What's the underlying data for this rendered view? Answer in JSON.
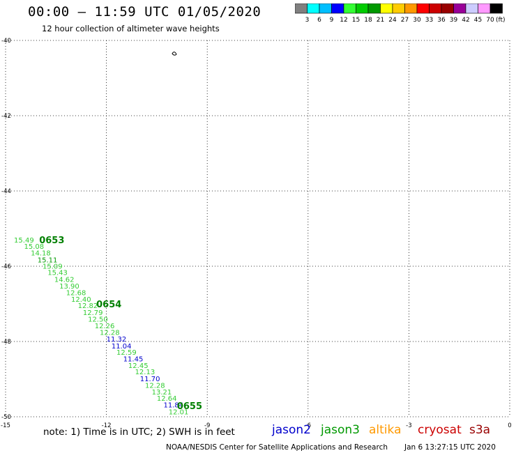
{
  "header": {
    "title": "00:00 – 11:59 UTC 01/05/2020",
    "subtitle": "12 hour collection of altimeter wave heights"
  },
  "colorbar": {
    "colors": [
      "#808080",
      "#00ffff",
      "#00bfff",
      "#0000ff",
      "#33ff33",
      "#00cc00",
      "#009900",
      "#ffff00",
      "#ffcc00",
      "#ff9900",
      "#ff0000",
      "#cc0000",
      "#990000",
      "#990099",
      "#ccccff",
      "#ff99ff",
      "#000000"
    ],
    "labels": [
      "3",
      "6",
      "9",
      "12",
      "15",
      "18",
      "21",
      "24",
      "27",
      "30",
      "33",
      "36",
      "39",
      "42",
      "45",
      "70"
    ],
    "unit": "(ft)"
  },
  "axes": {
    "lon_ticks": [
      "-15",
      "-12",
      "-9",
      "-6",
      "-3",
      "0"
    ],
    "lat_ticks": [
      "-40",
      "-42",
      "-44",
      "-46",
      "-48",
      "-50"
    ]
  },
  "map_data": {
    "lon_range": [
      -15,
      0
    ],
    "lat_range": [
      -50,
      -40
    ],
    "grid": "dotted",
    "island": {
      "lon": -10.0,
      "lat": -40.35
    },
    "time_labels": [
      {
        "text": "0653",
        "lon": -14.0,
        "lat": -45.3,
        "color": "#007f00"
      },
      {
        "text": "0654",
        "lon": -12.3,
        "lat": -47.0,
        "color": "#007f00"
      },
      {
        "text": "0655",
        "lon": -9.9,
        "lat": -49.7,
        "color": "#007f00"
      }
    ],
    "observations": [
      {
        "text": "15.49",
        "lon": -14.75,
        "lat": -45.3,
        "color": "#33cc33"
      },
      {
        "text": "15.08",
        "lon": -14.45,
        "lat": -45.46,
        "color": "#33cc33"
      },
      {
        "text": "14.18",
        "lon": -14.25,
        "lat": -45.64,
        "color": "#33cc33"
      },
      {
        "text": "15.11",
        "lon": -14.05,
        "lat": -45.82,
        "color": "#009900"
      },
      {
        "text": "15.09",
        "lon": -13.9,
        "lat": -45.99,
        "color": "#33cc33"
      },
      {
        "text": "15.43",
        "lon": -13.75,
        "lat": -46.16,
        "color": "#33cc33"
      },
      {
        "text": "14.62",
        "lon": -13.55,
        "lat": -46.34,
        "color": "#33cc33"
      },
      {
        "text": "13.90",
        "lon": -13.4,
        "lat": -46.52,
        "color": "#33cc33"
      },
      {
        "text": "12.68",
        "lon": -13.2,
        "lat": -46.69,
        "color": "#33cc33"
      },
      {
        "text": "12.40",
        "lon": -13.05,
        "lat": -46.87,
        "color": "#33cc33"
      },
      {
        "text": "12.82",
        "lon": -12.85,
        "lat": -47.04,
        "color": "#33cc33"
      },
      {
        "text": "12.79",
        "lon": -12.7,
        "lat": -47.22,
        "color": "#33cc33"
      },
      {
        "text": "12.50",
        "lon": -12.55,
        "lat": -47.4,
        "color": "#33cc33"
      },
      {
        "text": "12.26",
        "lon": -12.35,
        "lat": -47.57,
        "color": "#33cc33"
      },
      {
        "text": "12.28",
        "lon": -12.2,
        "lat": -47.75,
        "color": "#33cc33"
      },
      {
        "text": "11.32",
        "lon": -12.0,
        "lat": -47.93,
        "color": "#0000cc"
      },
      {
        "text": "11.04",
        "lon": -11.85,
        "lat": -48.11,
        "color": "#0000cc"
      },
      {
        "text": "12.59",
        "lon": -11.7,
        "lat": -48.28,
        "color": "#33cc33"
      },
      {
        "text": "11.45",
        "lon": -11.5,
        "lat": -48.45,
        "color": "#0000cc"
      },
      {
        "text": "12.45",
        "lon": -11.35,
        "lat": -48.63,
        "color": "#33cc33"
      },
      {
        "text": "12.13",
        "lon": -11.15,
        "lat": -48.8,
        "color": "#33cc33"
      },
      {
        "text": "11.70",
        "lon": -11.0,
        "lat": -48.98,
        "color": "#0000cc"
      },
      {
        "text": "12.28",
        "lon": -10.85,
        "lat": -49.16,
        "color": "#33cc33"
      },
      {
        "text": "13.21",
        "lon": -10.65,
        "lat": -49.33,
        "color": "#33cc33"
      },
      {
        "text": "12.64",
        "lon": -10.5,
        "lat": -49.5,
        "color": "#33cc33"
      },
      {
        "text": "11.84",
        "lon": -10.3,
        "lat": -49.68,
        "color": "#0000cc"
      },
      {
        "text": "12.01",
        "lon": -10.15,
        "lat": -49.86,
        "color": "#33cc33"
      }
    ]
  },
  "footer": {
    "note": "note:  1) Time is in UTC;  2) SWH is in feet",
    "satellites": [
      {
        "name": "jason2",
        "color": "#0000cc"
      },
      {
        "name": "jason3",
        "color": "#009900"
      },
      {
        "name": "altika",
        "color": "#ff9900"
      },
      {
        "name": "cryosat",
        "color": "#cc0000"
      },
      {
        "name": "s3a",
        "color": "#990000"
      }
    ],
    "credit": "NOAA/NESDIS Center for Satellite Applications and Research",
    "stamp": "Jan  6 13:27:15 UTC 2020"
  }
}
